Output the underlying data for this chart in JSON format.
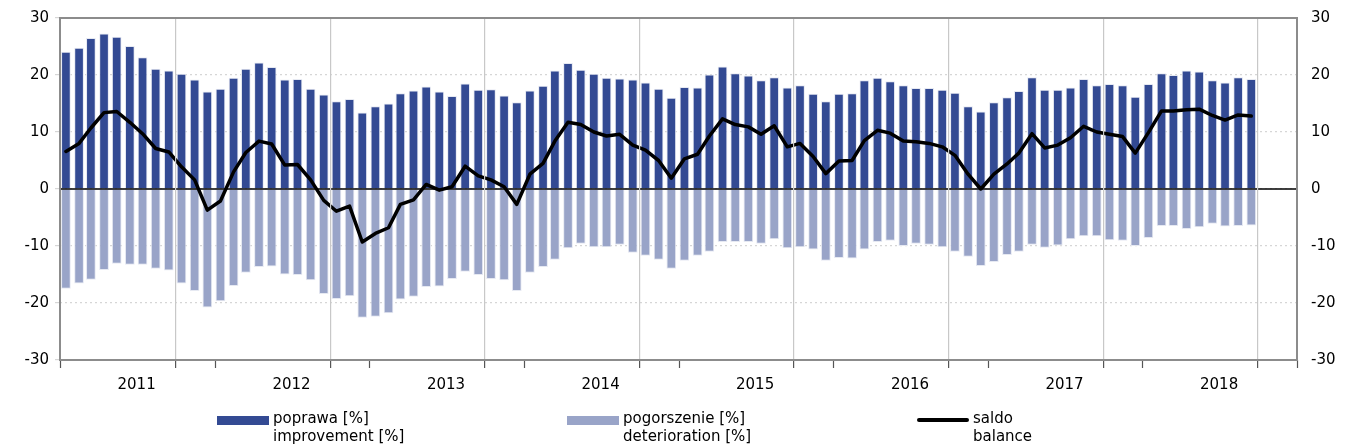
{
  "chart_data": {
    "type": "bar",
    "stacked": true,
    "x": [
      "2011-01-15",
      "2011-02-15",
      "2011-03-15",
      "2011-04-15",
      "2011-05-15",
      "2011-06-15",
      "2011-07-15",
      "2011-08-15",
      "2011-09-15",
      "2011-10-15",
      "2011-11-15",
      "2011-12-15",
      "2012-01-15",
      "2012-02-15",
      "2012-03-15",
      "2012-04-15",
      "2012-05-15",
      "2012-06-15",
      "2012-07-15",
      "2012-08-15",
      "2012-09-15",
      "2012-10-15",
      "2012-11-15",
      "2012-12-15",
      "2013-01-15",
      "2013-02-15",
      "2013-03-15",
      "2013-04-15",
      "2013-05-15",
      "2013-06-15",
      "2013-07-15",
      "2013-08-15",
      "2013-09-15",
      "2013-10-15",
      "2013-11-15",
      "2013-12-15",
      "2014-01-15",
      "2014-02-15",
      "2014-03-15",
      "2014-04-15",
      "2014-05-15",
      "2014-06-15",
      "2014-07-15",
      "2014-08-15",
      "2014-09-15",
      "2014-10-15",
      "2014-11-15",
      "2014-12-15",
      "2015-01-15",
      "2015-02-15",
      "2015-03-15",
      "2015-04-15",
      "2015-05-15",
      "2015-06-15",
      "2015-07-15",
      "2015-08-15",
      "2015-09-15",
      "2015-10-15",
      "2015-11-15",
      "2015-12-15",
      "2016-01-15",
      "2016-02-15",
      "2016-03-15",
      "2016-04-15",
      "2016-05-15",
      "2016-06-15",
      "2016-07-15",
      "2016-08-15",
      "2016-09-15",
      "2016-10-15",
      "2016-11-15",
      "2016-12-15",
      "2017-01-15",
      "2017-02-15",
      "2017-03-15",
      "2017-04-15",
      "2017-05-15",
      "2017-06-15",
      "2017-07-15",
      "2017-08-15",
      "2017-09-15",
      "2017-10-15",
      "2017-11-15",
      "2017-12-15",
      "2018-01-15",
      "2018-02-15",
      "2018-03-15",
      "2018-04-15",
      "2018-05-15",
      "2018-06-15",
      "2018-07-15",
      "2018-08-15",
      "2018-09-15"
    ],
    "series": [
      {
        "name": "poprawa [%]\nimprovement [%]",
        "color": "#334a93",
        "values": [
          24.1,
          24.8,
          26.5,
          27.3,
          26.7,
          25.1,
          23.1,
          21.1,
          20.8,
          20.2,
          19.2,
          17.1,
          17.6,
          19.5,
          21.1,
          22.2,
          21.4,
          19.2,
          19.3,
          17.6,
          16.6,
          15.4,
          15.8,
          13.4,
          14.5,
          15.0,
          16.8,
          17.3,
          18.0,
          17.1,
          16.3,
          18.5,
          17.4,
          17.5,
          16.4,
          15.2,
          17.3,
          18.1,
          20.8,
          22.1,
          20.9,
          20.2,
          19.5,
          19.4,
          19.2,
          18.7,
          17.6,
          16.0,
          17.9,
          17.8,
          20.1,
          21.5,
          20.3,
          19.9,
          19.1,
          19.6,
          17.8,
          18.2,
          16.7,
          15.4,
          16.7,
          16.8,
          19.1,
          19.5,
          18.9,
          18.2,
          17.7,
          17.7,
          17.4,
          16.9,
          14.5,
          13.6,
          15.2,
          16.1,
          17.2,
          19.6,
          17.4,
          17.4,
          17.8,
          19.3,
          18.2,
          18.4,
          18.2,
          16.2,
          18.4,
          20.3,
          20.0,
          20.8,
          20.6,
          19.1,
          18.7,
          19.6,
          19.3
        ]
      },
      {
        "name": "pogorszenie [%]\ndeterioration [%]",
        "color": "#99a4c8",
        "values": [
          -17.5,
          -16.6,
          -15.9,
          -14.2,
          -13.1,
          -13.3,
          -13.3,
          -14.0,
          -14.3,
          -16.6,
          -17.9,
          -20.8,
          -19.7,
          -17.0,
          -14.7,
          -13.7,
          -13.6,
          -15.0,
          -15.1,
          -16.0,
          -18.4,
          -19.3,
          -18.8,
          -22.6,
          -22.4,
          -21.8,
          -19.4,
          -18.9,
          -17.2,
          -17.1,
          -15.8,
          -14.5,
          -15.1,
          -15.8,
          -16.0,
          -17.9,
          -14.7,
          -13.7,
          -12.4,
          -10.4,
          -9.6,
          -10.2,
          -10.2,
          -9.8,
          -11.2,
          -11.7,
          -12.4,
          -14.0,
          -12.6,
          -11.7,
          -11.0,
          -9.3,
          -9.3,
          -9.3,
          -9.6,
          -8.8,
          -10.4,
          -10.2,
          -10.6,
          -12.6,
          -12.1,
          -12.2,
          -10.6,
          -9.3,
          -9.1,
          -10.0,
          -9.6,
          -9.8,
          -10.2,
          -11.0,
          -11.9,
          -13.5,
          -12.8,
          -11.6,
          -11.0,
          -9.8,
          -10.3,
          -9.9,
          -8.8,
          -8.3,
          -8.3,
          -9.0,
          -9.1,
          -10.0,
          -8.6,
          -6.5,
          -6.5,
          -7.0,
          -6.7,
          -6.1,
          -6.6,
          -6.5,
          -6.4
        ]
      },
      {
        "name": "saldo\nbalance",
        "type": "line",
        "color": "#000000",
        "values": [
          6.6,
          8.0,
          10.7,
          13.4,
          13.6,
          11.7,
          9.7,
          7.1,
          6.5,
          3.9,
          1.6,
          -3.7,
          -2.1,
          3.0,
          6.4,
          8.4,
          7.9,
          4.2,
          4.3,
          1.6,
          -2.0,
          -3.9,
          -3.0,
          -9.3,
          -7.8,
          -6.8,
          -2.7,
          -1.9,
          0.8,
          -0.2,
          0.4,
          4.0,
          2.3,
          1.6,
          0.4,
          -2.7,
          2.6,
          4.5,
          8.4,
          11.7,
          11.3,
          10.0,
          9.3,
          9.6,
          7.7,
          6.8,
          5.0,
          1.9,
          5.3,
          6.1,
          9.3,
          12.3,
          11.3,
          10.9,
          9.6,
          11.1,
          7.4,
          8.0,
          5.7,
          2.7,
          4.9,
          5.0,
          8.5,
          10.3,
          9.8,
          8.4,
          8.3,
          8.0,
          7.4,
          5.9,
          2.6,
          0.0,
          2.6,
          4.4,
          6.3,
          9.7,
          7.2,
          7.7,
          9.0,
          11.0,
          10.0,
          9.6,
          9.2,
          6.3,
          9.9,
          13.7,
          13.7,
          13.9,
          14.0,
          12.9,
          12.1,
          13.0,
          12.8
        ]
      }
    ],
    "xlim": [
      "2011-01-01",
      "2019-01-01"
    ],
    "xticks": [
      {
        "value": "2011-01-01",
        "label": null
      },
      {
        "value": "2011-07-01",
        "label": "2011"
      },
      {
        "value": "2012-01-01",
        "label": null
      },
      {
        "value": "2012-07-01",
        "label": "2012"
      },
      {
        "value": "2013-01-01",
        "label": null
      },
      {
        "value": "2013-07-01",
        "label": "2013"
      },
      {
        "value": "2014-01-01",
        "label": null
      },
      {
        "value": "2014-07-01",
        "label": "2014"
      },
      {
        "value": "2015-01-01",
        "label": null
      },
      {
        "value": "2015-07-01",
        "label": "2015"
      },
      {
        "value": "2016-01-01",
        "label": null
      },
      {
        "value": "2016-07-01",
        "label": "2016"
      },
      {
        "value": "2017-01-01",
        "label": null
      },
      {
        "value": "2017-07-01",
        "label": "2017"
      },
      {
        "value": "2018-01-01",
        "label": null
      },
      {
        "value": "2018-07-01",
        "label": "2018"
      },
      {
        "value": "2019-01-01",
        "label": null
      }
    ],
    "ylim": [
      -30,
      30
    ],
    "yticks": [
      -30,
      -20,
      -10,
      0,
      10,
      20,
      30
    ],
    "y2lim": [
      -30,
      30
    ],
    "y2ticks": [
      -30,
      -20,
      -10,
      0,
      10,
      20,
      30
    ],
    "grid": true,
    "legend": "bottom",
    "marker": "none",
    "line_style": "solid"
  }
}
